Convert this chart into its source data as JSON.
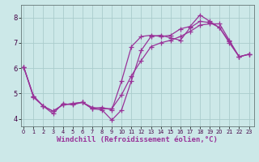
{
  "background_color": "#cce8e8",
  "grid_color": "#aacccc",
  "line_color": "#993399",
  "marker": "+",
  "markersize": 4,
  "linewidth": 0.9,
  "xlabel": "Windchill (Refroidissement éolien,°C)",
  "xlabel_fontsize": 6.5,
  "ytick_labels": [
    "4",
    "5",
    "6",
    "7",
    "8"
  ],
  "yticks": [
    4,
    5,
    6,
    7,
    8
  ],
  "xtick_labels": [
    "0",
    "1",
    "2",
    "3",
    "4",
    "5",
    "6",
    "7",
    "8",
    "9",
    "10",
    "11",
    "12",
    "13",
    "14",
    "15",
    "16",
    "17",
    "18",
    "19",
    "20",
    "21",
    "22",
    "23"
  ],
  "xticks": [
    0,
    1,
    2,
    3,
    4,
    5,
    6,
    7,
    8,
    9,
    10,
    11,
    12,
    13,
    14,
    15,
    16,
    17,
    18,
    19,
    20,
    21,
    22,
    23
  ],
  "xlim": [
    -0.3,
    23.5
  ],
  "ylim": [
    3.7,
    8.5
  ],
  "series1": [
    [
      0,
      6.05
    ],
    [
      1,
      4.9
    ],
    [
      2,
      4.5
    ],
    [
      3,
      4.2
    ],
    [
      4,
      4.6
    ],
    [
      5,
      4.55
    ],
    [
      6,
      4.65
    ],
    [
      7,
      4.4
    ],
    [
      8,
      4.35
    ],
    [
      9,
      3.95
    ],
    [
      10,
      4.35
    ],
    [
      11,
      5.5
    ],
    [
      12,
      6.7
    ],
    [
      13,
      7.25
    ],
    [
      14,
      7.3
    ],
    [
      15,
      7.2
    ],
    [
      16,
      7.1
    ],
    [
      17,
      7.6
    ],
    [
      18,
      7.85
    ],
    [
      19,
      7.8
    ],
    [
      20,
      7.6
    ],
    [
      21,
      7.0
    ],
    [
      22,
      6.45
    ],
    [
      23,
      6.55
    ]
  ],
  "series2": [
    [
      0,
      6.05
    ],
    [
      1,
      4.85
    ],
    [
      2,
      4.5
    ],
    [
      3,
      4.3
    ],
    [
      4,
      4.55
    ],
    [
      5,
      4.6
    ],
    [
      6,
      4.65
    ],
    [
      7,
      4.4
    ],
    [
      8,
      4.45
    ],
    [
      9,
      4.35
    ],
    [
      10,
      5.5
    ],
    [
      11,
      6.85
    ],
    [
      12,
      7.25
    ],
    [
      13,
      7.3
    ],
    [
      14,
      7.25
    ],
    [
      15,
      7.3
    ],
    [
      16,
      7.55
    ],
    [
      17,
      7.65
    ],
    [
      18,
      8.1
    ],
    [
      19,
      7.85
    ],
    [
      20,
      7.6
    ],
    [
      21,
      7.05
    ],
    [
      22,
      6.45
    ],
    [
      23,
      6.55
    ]
  ],
  "series3": [
    [
      0,
      6.05
    ],
    [
      1,
      4.9
    ],
    [
      2,
      4.5
    ],
    [
      3,
      4.3
    ],
    [
      4,
      4.55
    ],
    [
      5,
      4.6
    ],
    [
      6,
      4.65
    ],
    [
      7,
      4.45
    ],
    [
      8,
      4.4
    ],
    [
      9,
      4.4
    ],
    [
      10,
      4.95
    ],
    [
      11,
      5.7
    ],
    [
      12,
      6.3
    ],
    [
      13,
      6.85
    ],
    [
      14,
      7.0
    ],
    [
      15,
      7.1
    ],
    [
      16,
      7.25
    ],
    [
      17,
      7.45
    ],
    [
      18,
      7.7
    ],
    [
      19,
      7.75
    ],
    [
      20,
      7.75
    ],
    [
      21,
      7.1
    ],
    [
      22,
      6.45
    ],
    [
      23,
      6.55
    ]
  ]
}
